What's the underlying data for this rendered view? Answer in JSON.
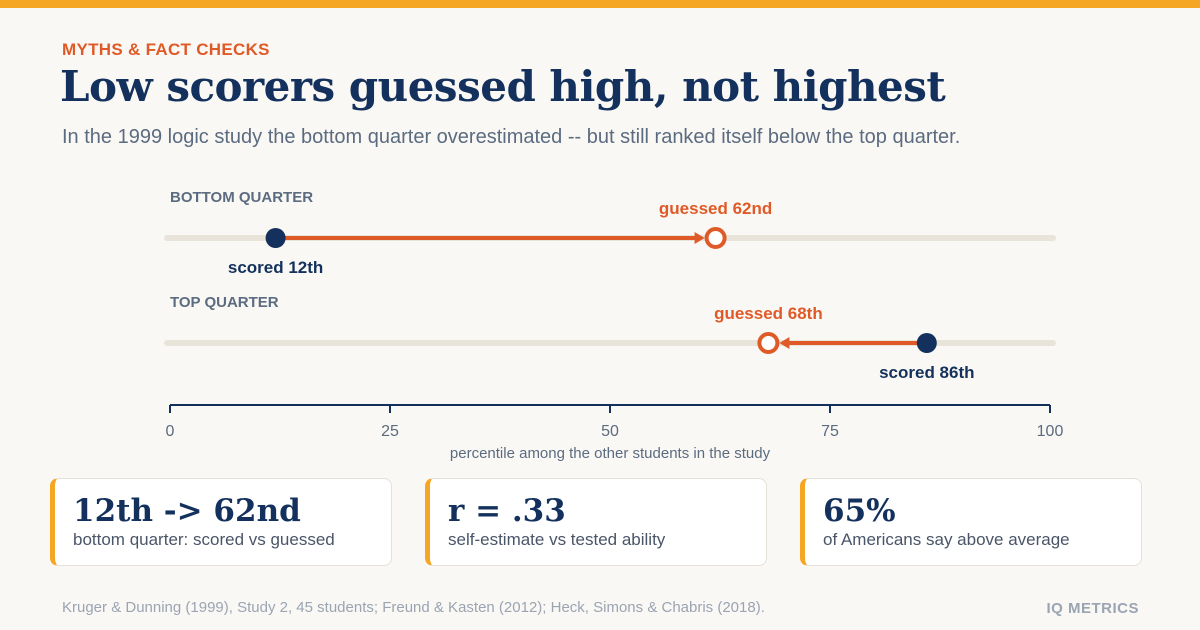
{
  "header": {
    "eyebrow": "MYTHS & FACT CHECKS",
    "title": "Low scorers guessed high, not highest",
    "subtitle": "In the 1999 logic study the bottom quarter overestimated -- but still ranked itself below the top quarter."
  },
  "chart_data": {
    "type": "dumbbell",
    "xlabel": "percentile among the other students in the study",
    "xlim": [
      0,
      100
    ],
    "ticks": [
      0,
      25,
      50,
      75,
      100
    ],
    "rows": [
      {
        "group": "BOTTOM QUARTER",
        "scored": 12,
        "guessed": 62,
        "scored_label": "scored 12th",
        "guessed_label": "guessed 62nd"
      },
      {
        "group": "TOP QUARTER",
        "scored": 86,
        "guessed": 68,
        "scored_label": "scored 86th",
        "guessed_label": "guessed 68th"
      }
    ],
    "colors": {
      "scored": "#13315c",
      "guessed": "#e05a28",
      "track": "#e8e4da",
      "axis": "#13315c"
    }
  },
  "cards": [
    {
      "value": "12th -> 62nd",
      "label": "bottom quarter: scored vs guessed"
    },
    {
      "value": "r = .33",
      "label": "self-estimate vs tested ability"
    },
    {
      "value": "65%",
      "label": "of Americans say above average"
    }
  ],
  "footer": {
    "source": "Kruger & Dunning (1999), Study 2, 45 students; Freund & Kasten (2012); Heck, Simons & Chabris (2018).",
    "brand": "IQ METRICS"
  },
  "colors": {
    "accent": "#f5a623",
    "orange": "#e05a28",
    "navy": "#13315c",
    "background": "#faf8f4"
  }
}
